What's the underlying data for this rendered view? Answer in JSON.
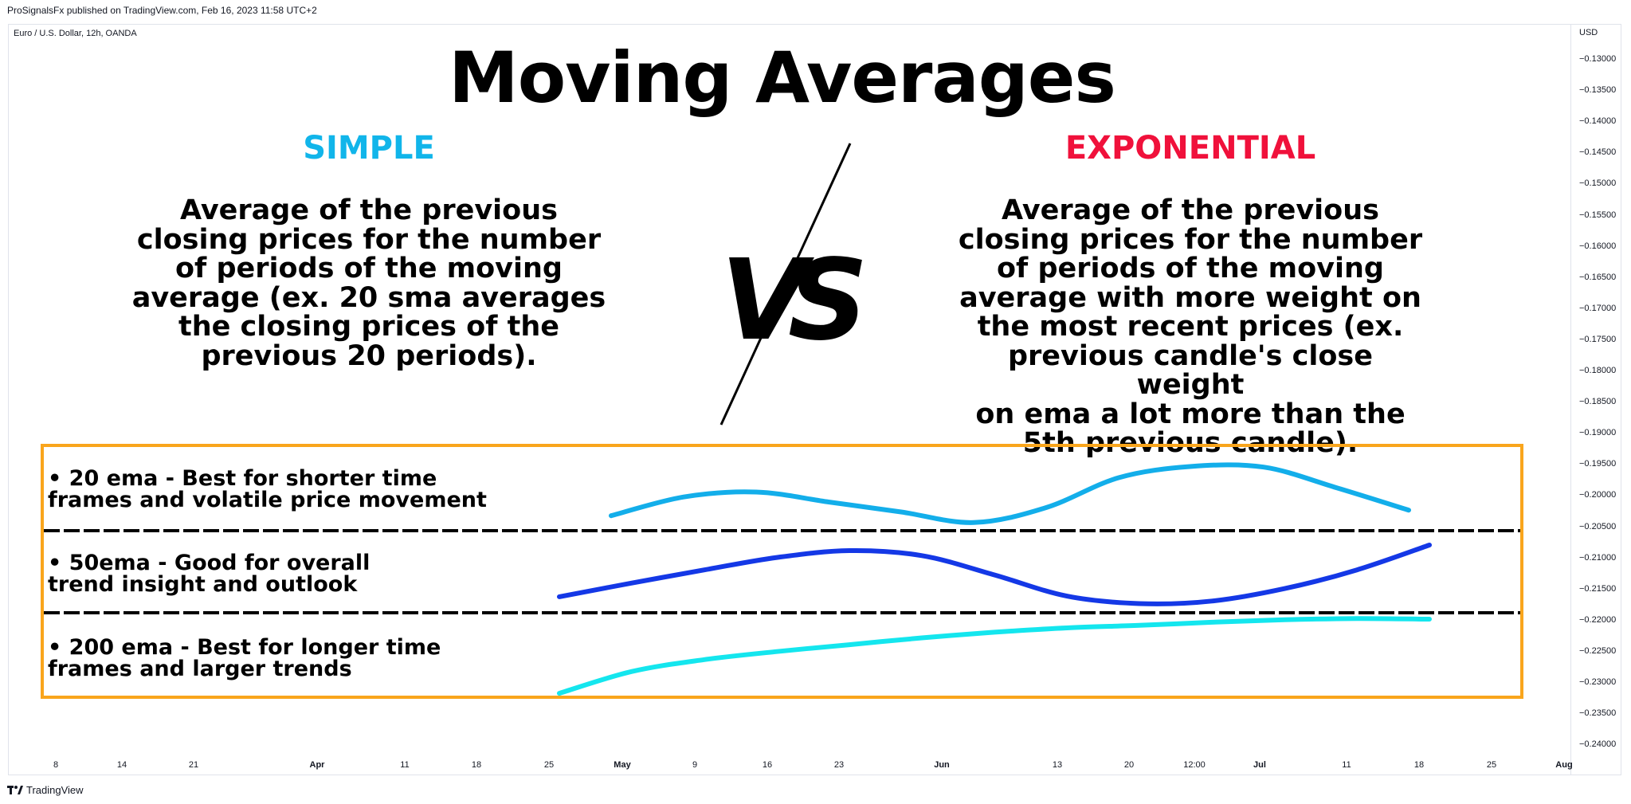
{
  "header": {
    "caption": "ProSignalsFx published on TradingView.com, Feb 16, 2023 11:58 UTC+2",
    "symbol": "Euro / U.S. Dollar, 12h, OANDA"
  },
  "price_axis": {
    "currency": "USD",
    "ticks": [
      "−0.13000",
      "−0.13500",
      "−0.14000",
      "−0.14500",
      "−0.15000",
      "−0.15500",
      "−0.16000",
      "−0.16500",
      "−0.17000",
      "−0.17500",
      "−0.18000",
      "−0.18500",
      "−0.19000",
      "−0.19500",
      "−0.20000",
      "−0.20500",
      "−0.21000",
      "−0.21500",
      "−0.22000",
      "−0.22500",
      "−0.23000",
      "−0.23500",
      "−0.24000"
    ]
  },
  "time_axis": {
    "ticks": [
      {
        "label": "8",
        "bold": false
      },
      {
        "label": "14",
        "bold": false
      },
      {
        "label": "21",
        "bold": false
      },
      {
        "label": "Apr",
        "bold": true
      },
      {
        "label": "11",
        "bold": false
      },
      {
        "label": "18",
        "bold": false
      },
      {
        "label": "25",
        "bold": false
      },
      {
        "label": "May",
        "bold": true
      },
      {
        "label": "9",
        "bold": false
      },
      {
        "label": "16",
        "bold": false
      },
      {
        "label": "23",
        "bold": false
      },
      {
        "label": "Jun",
        "bold": true
      },
      {
        "label": "13",
        "bold": false
      },
      {
        "label": "20",
        "bold": false
      },
      {
        "label": "12:00",
        "bold": false
      },
      {
        "label": "Jul",
        "bold": true
      },
      {
        "label": "11",
        "bold": false
      },
      {
        "label": "18",
        "bold": false
      },
      {
        "label": "25",
        "bold": false
      },
      {
        "label": "Aug",
        "bold": true
      }
    ]
  },
  "footer": {
    "brand": "TradingView"
  },
  "content": {
    "title": "Moving Averages",
    "simple": {
      "heading": "SIMPLE",
      "lines": [
        "Average of the previous",
        "closing prices for the number",
        "of periods of the moving",
        "average (ex. 20 sma averages",
        "the closing prices of the",
        "previous 20 periods)."
      ]
    },
    "exponential": {
      "heading": "EXPONENTIAL",
      "lines": [
        "Average of the previous",
        "closing prices for the number",
        "of periods of the moving",
        "average with more weight on",
        "the most recent prices (ex.",
        "previous candle's close weight",
        "on ema a lot more than the",
        "5th previous candle)."
      ]
    },
    "vs_label": "VS"
  },
  "colors": {
    "simple": "#11b5ea",
    "exponential": "#f0113b",
    "box_border": "#f9a51c",
    "ema20": "#13aeea",
    "ema50": "#1438e6",
    "ema200": "#14e6ee"
  },
  "chart_data": {
    "type": "line",
    "xlabel": "",
    "ylabel": "",
    "ylim": [
      -0.24,
      -0.13
    ],
    "grid": false,
    "legend": "none",
    "series": [
      {
        "name": "• 20 ema - Best for shorter time frames and volatile price movement",
        "color": "#13aeea",
        "x": [
          "Apr 30",
          "May 7",
          "May 14",
          "May 21",
          "May 28",
          "Jun 4",
          "Jun 11",
          "Jun 18",
          "Jun 25",
          "Jul 2",
          "Jul 9",
          "Jul 16"
        ],
        "y": [
          -0.2033,
          -0.2003,
          -0.1995,
          -0.2011,
          -0.2027,
          -0.2044,
          -0.202,
          -0.1972,
          -0.1954,
          -0.1955,
          -0.1988,
          -0.2024
        ]
      },
      {
        "name": "• 50ema - Good for overall trend insight and outlook",
        "color": "#1438e6",
        "x": [
          "Apr 25",
          "May 2",
          "May 9",
          "May 16",
          "May 23",
          "May 30",
          "Jun 6",
          "Jun 13",
          "Jun 20",
          "Jun 27",
          "Jul 4",
          "Jul 11",
          "Jul 18"
        ],
        "y": [
          -0.2163,
          -0.2141,
          -0.212,
          -0.21,
          -0.2089,
          -0.2097,
          -0.2128,
          -0.2162,
          -0.2174,
          -0.217,
          -0.215,
          -0.212,
          -0.208
        ]
      },
      {
        "name": "• 200 ema - Best for longer time frames and larger trends",
        "color": "#14e6ee",
        "x": [
          "Apr 25",
          "May 2",
          "May 9",
          "May 16",
          "May 23",
          "May 30",
          "Jun 6",
          "Jun 13",
          "Jun 20",
          "Jun 27",
          "Jul 4",
          "Jul 11",
          "Jul 18"
        ],
        "y": [
          -0.2318,
          -0.2283,
          -0.2264,
          -0.2251,
          -0.224,
          -0.2229,
          -0.222,
          -0.2213,
          -0.2209,
          -0.2204,
          -0.22,
          -0.2198,
          -0.2199
        ]
      }
    ]
  },
  "ma_labels": [
    {
      "line1": "• 20 ema - Best for shorter time",
      "line2": "frames and volatile price movement"
    },
    {
      "line1": "• 50ema - Good for overall",
      "line2": "trend insight and outlook"
    },
    {
      "line1": " • 200 ema - Best for longer time",
      "line2": "frames and larger trends"
    }
  ]
}
